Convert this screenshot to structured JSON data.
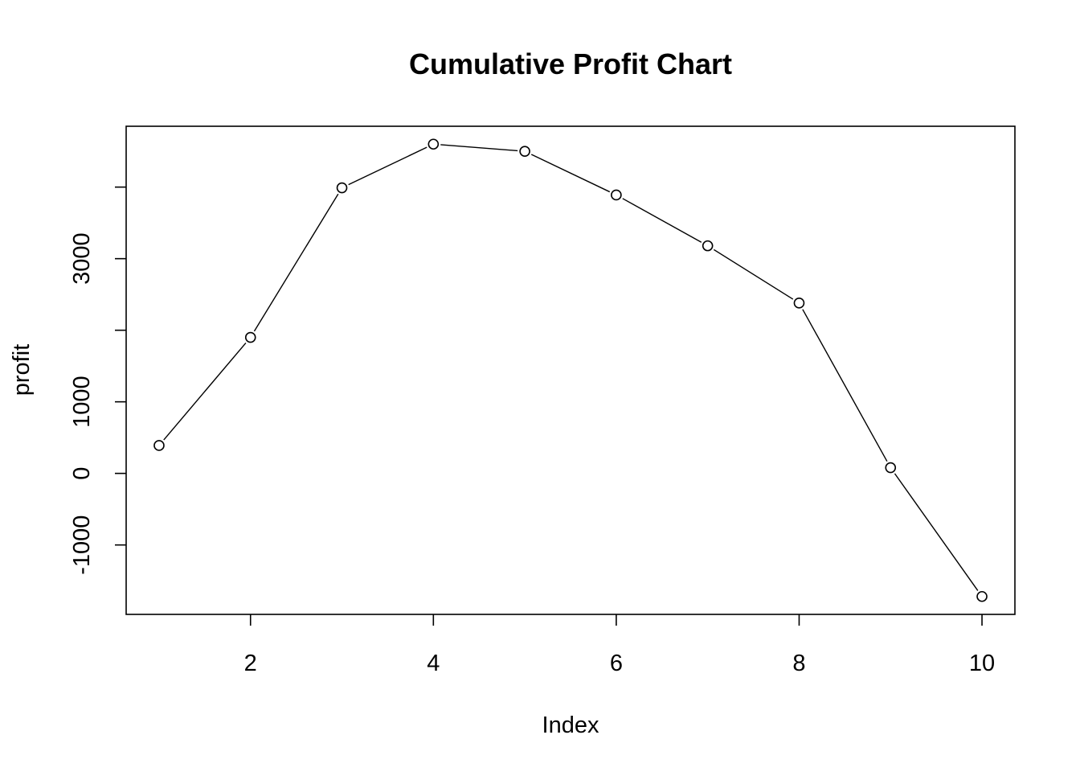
{
  "chart_data": {
    "type": "line",
    "title": "Cumulative Profit Chart",
    "xlabel": "Index",
    "ylabel": "profit",
    "x": [
      1,
      2,
      3,
      4,
      5,
      6,
      7,
      8,
      9,
      10
    ],
    "series": [
      {
        "values": [
          390,
          1900,
          3990,
          4600,
          4500,
          3890,
          3180,
          2380,
          80,
          -1720
        ]
      }
    ],
    "xlim": [
      0.64,
      10.36
    ],
    "ylim": [
      -1970,
      4850
    ],
    "x_ticks": [
      2,
      4,
      6,
      8,
      10
    ],
    "x_tick_labels": [
      "2",
      "4",
      "6",
      "8",
      "10"
    ],
    "y_ticks": [
      -1000,
      0,
      1000,
      2000,
      3000,
      4000
    ],
    "y_tick_labels": [
      "-1000",
      "0",
      "1000",
      "",
      "3000",
      ""
    ],
    "grid": false,
    "markers": "open-circle",
    "line_color": "#000000"
  }
}
